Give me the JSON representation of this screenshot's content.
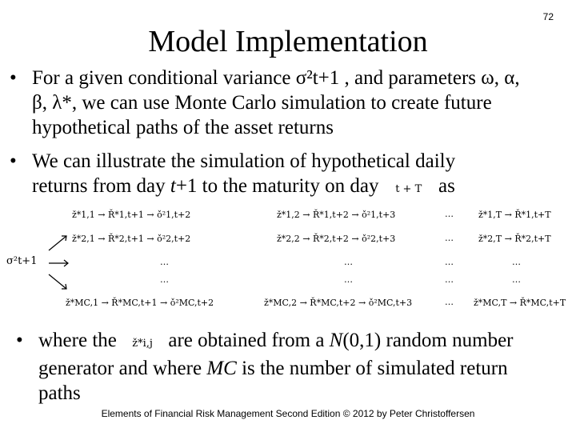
{
  "slide_number": "72",
  "title": "Model Implementation",
  "bullets": {
    "b1_line1": "For a given conditional variance σ²t+1 , and parameters ω, α,",
    "b1_line2": "β, λ*, we can use Monte Carlo simulation to create future",
    "b1_line3": "hypothetical paths of the asset returns",
    "b2_line1": "We can illustrate the simulation of hypothetical daily",
    "b2_line2_pre": "returns from day ",
    "b2_line2_t": "t",
    "b2_line2_mid": "+1 to the maturity on day",
    "b2_line2_inline": "t + T",
    "b2_line2_post": "as",
    "b3_line1_pre": "where the",
    "b3_line1_inline": "ž*i,j",
    "b3_line1_post": "are obtained from a ",
    "b3_line1_N": "N",
    "b3_line1_end": "(0,1) random number",
    "b3_line2_pre": "generator and where ",
    "b3_line2_MC": "MC",
    "b3_line2_post": " is the number of simulated return",
    "b3_line3": "paths"
  },
  "diagram": {
    "start": "σ²t+1",
    "ellipsis": "…",
    "rows": [
      [
        "ž*1,1 → Ř*1,t+1 → ǒ²1,t+2",
        "ž*1,2 → Ř*1,t+2 → ǒ²1,t+3",
        "ž*1,T → Ř*1,t+T"
      ],
      [
        "ž*2,1 → Ř*2,t+1 → ǒ²2,t+2",
        "ž*2,2 → Ř*2,t+2 → ǒ²2,t+3",
        "ž*2,T → Ř*2,t+T"
      ],
      [
        "ž*MC,1 → Ř*MC,t+1 → ǒ²MC,t+2",
        "ž*MC,2 → Ř*MC,t+2 → ǒ²MC,t+3",
        "ž*MC,T → Ř*MC,t+T"
      ]
    ]
  },
  "footer": "Elements of Financial Risk Management Second Edition © 2012 by Peter Christoffersen"
}
